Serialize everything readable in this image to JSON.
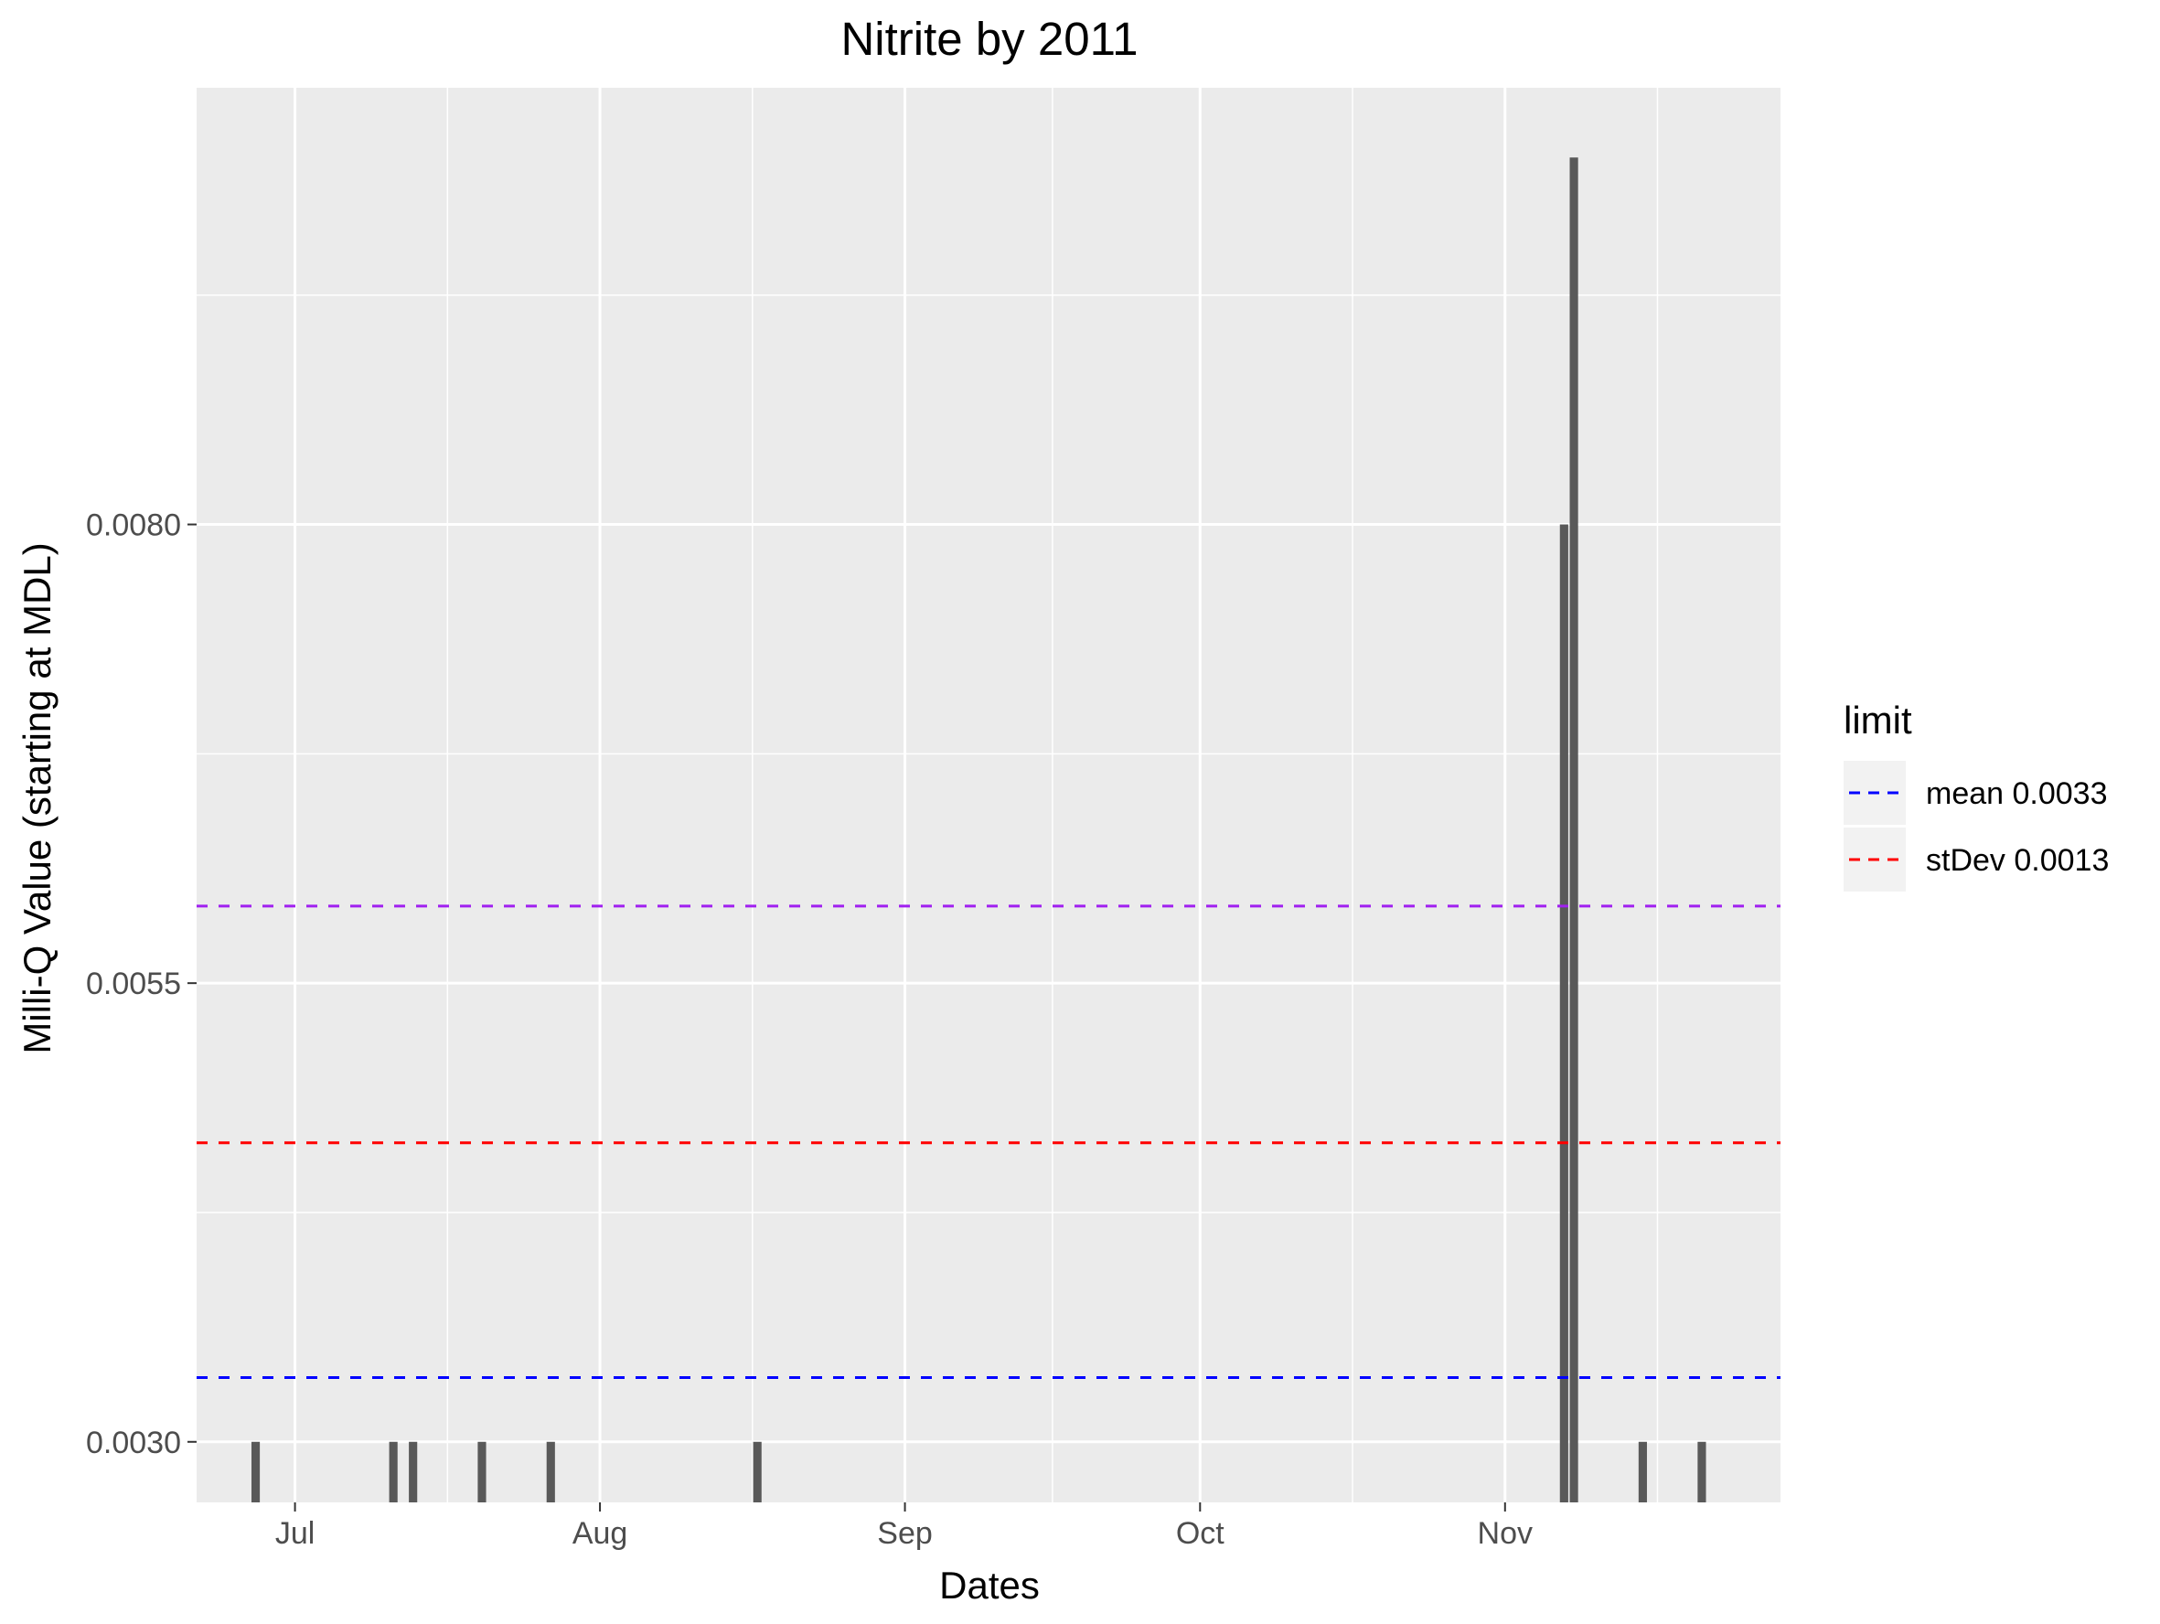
{
  "chart_data": {
    "type": "bar",
    "title": "Nitrite by 2011",
    "xlabel": "Dates",
    "ylabel": "Milli-Q Value (starting at MDL)",
    "x_axis_type": "date",
    "xlim": [
      "2011-06-21",
      "2011-11-29"
    ],
    "ylim": [
      0.00267,
      0.01038
    ],
    "y_baseline": 0.003,
    "x_ticks": [
      {
        "date": "2011-07-01",
        "label": "Jul"
      },
      {
        "date": "2011-08-01",
        "label": "Aug"
      },
      {
        "date": "2011-09-01",
        "label": "Sep"
      },
      {
        "date": "2011-10-01",
        "label": "Oct"
      },
      {
        "date": "2011-11-01",
        "label": "Nov"
      }
    ],
    "y_ticks": [
      {
        "value": 0.003,
        "label": "0.0030"
      },
      {
        "value": 0.0055,
        "label": "0.0055"
      },
      {
        "value": 0.008,
        "label": "0.0080"
      }
    ],
    "bars": [
      {
        "date": "2011-06-27",
        "value": 0.003
      },
      {
        "date": "2011-07-11",
        "value": 0.003
      },
      {
        "date": "2011-07-13",
        "value": 0.003
      },
      {
        "date": "2011-07-20",
        "value": 0.003
      },
      {
        "date": "2011-07-27",
        "value": 0.003
      },
      {
        "date": "2011-08-17",
        "value": 0.003
      },
      {
        "date": "2011-11-07",
        "value": 0.008
      },
      {
        "date": "2011-11-08",
        "value": 0.01
      },
      {
        "date": "2011-11-15",
        "value": 0.003
      },
      {
        "date": "2011-11-21",
        "value": 0.003
      }
    ],
    "reference_lines": [
      {
        "value": 0.00335,
        "color": "#0000ff",
        "dash": "dashed",
        "legend_label": "mean 0.0033"
      },
      {
        "value": 0.00463,
        "color": "#ff0000",
        "dash": "dashed",
        "legend_label": "stDev 0.0013"
      },
      {
        "value": 0.00592,
        "color": "#a020f0",
        "dash": "dashed"
      }
    ],
    "legend": {
      "title": "limit",
      "position": "right",
      "entries": [
        {
          "label": "mean 0.0033",
          "color": "#0000ff"
        },
        {
          "label": "stDev 0.0013",
          "color": "#ff0000"
        }
      ]
    },
    "grid": true,
    "colors": {
      "panel": "#ebebeb",
      "grid_major": "#ffffff",
      "bar": "#595959",
      "text": "#000000",
      "tick_text": "#4d4d4d"
    }
  }
}
